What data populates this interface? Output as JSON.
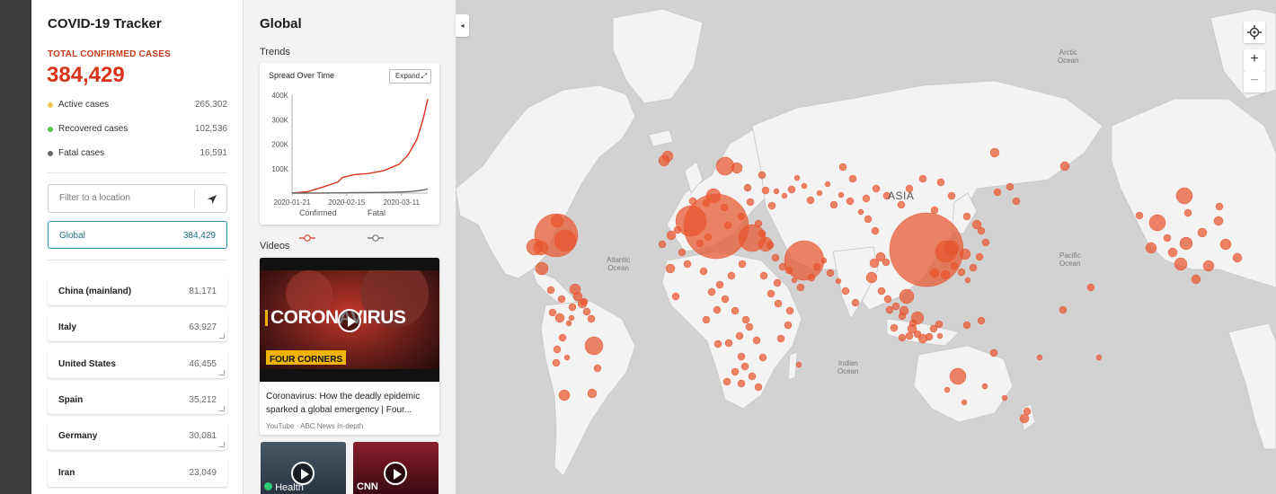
{
  "sidebar": {
    "title": "COVID-19 Tracker",
    "total_label": "TOTAL CONFIRMED CASES",
    "total_value": "384,429",
    "stats": [
      {
        "label": "Active cases",
        "value": "265,302",
        "color": "#f2c94c"
      },
      {
        "label": "Recovered cases",
        "value": "102,536",
        "color": "#5cb85c"
      },
      {
        "label": "Fatal cases",
        "value": "16,591",
        "color": "#666666"
      }
    ],
    "filter_placeholder": "Filter to a location",
    "global": {
      "label": "Global",
      "value": "384,429"
    },
    "countries": [
      {
        "label": "China (mainland)",
        "value": "81,171"
      },
      {
        "label": "Italy",
        "value": "63,927"
      },
      {
        "label": "United States",
        "value": "46,455"
      },
      {
        "label": "Spain",
        "value": "35,212"
      },
      {
        "label": "Germany",
        "value": "30,081"
      },
      {
        "label": "Iran",
        "value": "23,049"
      }
    ]
  },
  "panel": {
    "title": "Global",
    "trends_label": "Trends",
    "chart_title": "Spread Over Time",
    "expand_label": "Expand",
    "videos_label": "Videos",
    "video": {
      "thumb_text": "CORONAVIRUS",
      "badge_text": "FOUR CORNERS",
      "title": "Coronavirus: How the deadly epidemic sparked a global emergency | Four...",
      "source": "YouTube · ABC News In-depth"
    },
    "mini_videos": [
      {
        "caption": "Health"
      },
      {
        "caption": "CNN"
      }
    ]
  },
  "chart_data": {
    "type": "line",
    "title": "Spread Over Time",
    "x_ticks": [
      "2020-01-21",
      "2020-02-15",
      "2020-03-11"
    ],
    "y_ticks": [
      "100K",
      "200K",
      "300K",
      "400K"
    ],
    "ylim": [
      0,
      400000
    ],
    "series": [
      {
        "name": "Confirmed",
        "color": "#d9331a",
        "x": [
          "2020-01-21",
          "2020-01-28",
          "2020-02-04",
          "2020-02-11",
          "2020-02-13",
          "2020-02-18",
          "2020-02-25",
          "2020-03-03",
          "2020-03-10",
          "2020-03-14",
          "2020-03-18",
          "2020-03-21",
          "2020-03-23"
        ],
        "values": [
          300,
          5600,
          24500,
          45000,
          64000,
          75000,
          80000,
          92000,
          118000,
          156000,
          218000,
          305000,
          384429
        ]
      },
      {
        "name": "Fatal",
        "color": "#666666",
        "x": [
          "2020-01-21",
          "2020-02-04",
          "2020-02-18",
          "2020-03-03",
          "2020-03-10",
          "2020-03-14",
          "2020-03-18",
          "2020-03-21",
          "2020-03-23"
        ],
        "values": [
          0,
          500,
          2000,
          3100,
          4300,
          5800,
          8800,
          13000,
          16591
        ]
      }
    ]
  },
  "map": {
    "labels": {
      "asia": "ASIA",
      "arctic": "Arctic\nOcean",
      "atlantic": "Atlantic\nOcean",
      "pacific": "Pacific\nOcean",
      "indian": "Indian\nOcean"
    },
    "bubble_color": "#e8542e",
    "controls": [
      "locate-icon",
      "zoom-in-icon",
      "zoom-out-icon"
    ]
  }
}
